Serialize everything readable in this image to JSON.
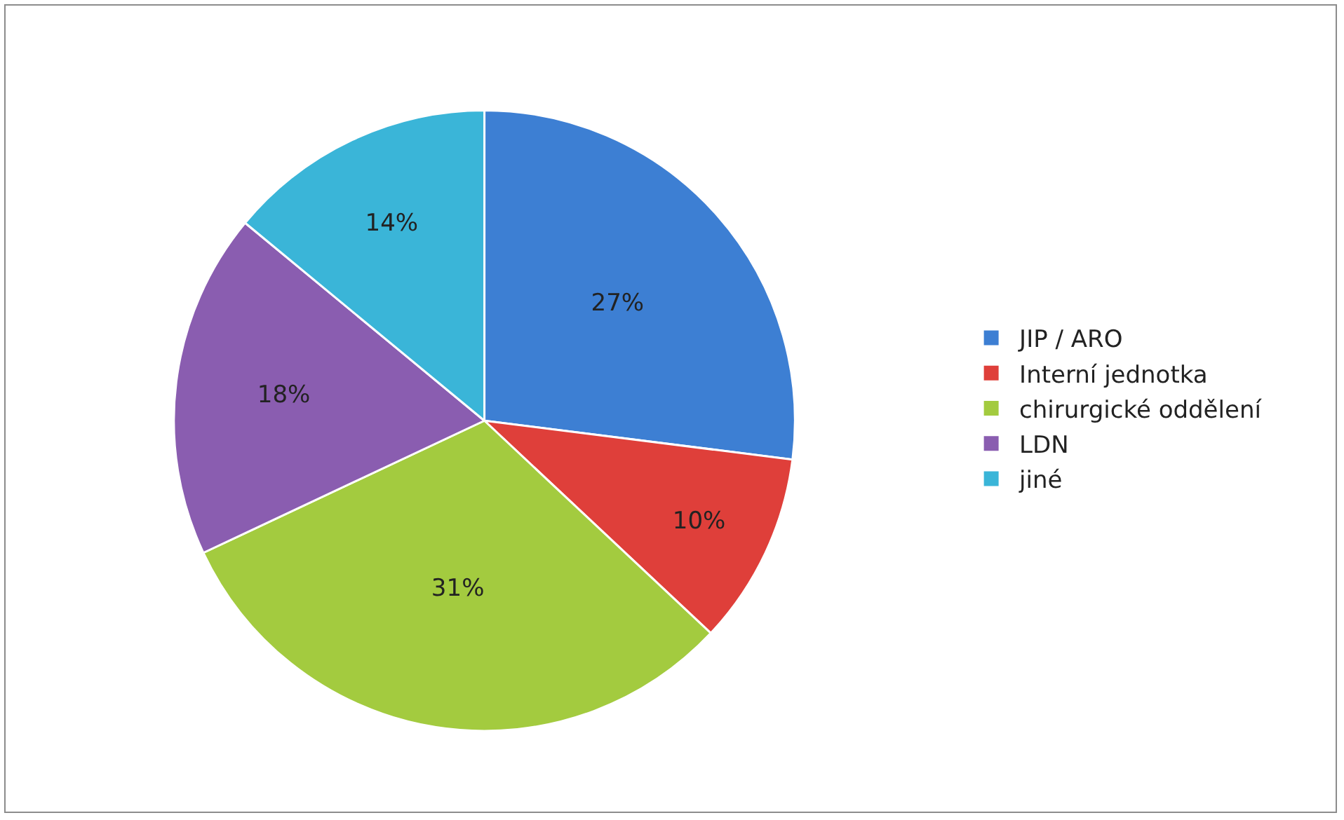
{
  "chart_data": {
    "type": "pie",
    "categories": [
      "JIP / ARO",
      "Interní jednotka",
      "chirurgické oddělení",
      "LDN",
      "jiné"
    ],
    "values": [
      27,
      10,
      31,
      18,
      14
    ],
    "value_labels": [
      "27%",
      "10%",
      "31%",
      "18%",
      "14%"
    ],
    "colors": [
      "#3d7fd3",
      "#df3f3a",
      "#a3cb3f",
      "#8a5db0",
      "#3ab5d8"
    ],
    "legend": "right"
  }
}
